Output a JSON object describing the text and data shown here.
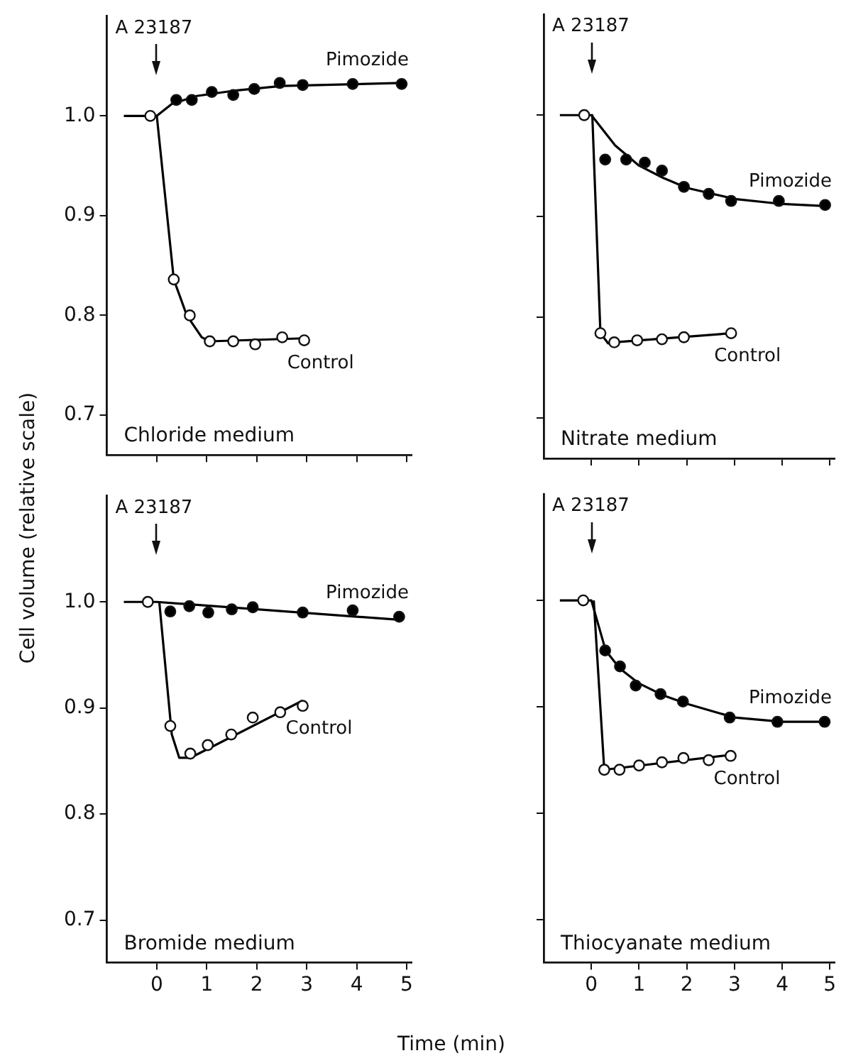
{
  "chart_data": [
    {
      "type": "scatter",
      "ylabel": "Cell volume (relative scale)",
      "xlim": [
        -1,
        5.1
      ],
      "ylim": [
        0.66,
        1.1
      ],
      "xticks": [
        0,
        1,
        2,
        3,
        4,
        5
      ],
      "yticks": [
        0.7,
        0.8,
        0.9,
        {
          "value": 1,
          "label": "1.0"
        }
      ],
      "tick_labels": "y",
      "grid": false,
      "marker": "circle",
      "annotations": [
        "Chloride medium",
        "A 23187"
      ],
      "series": [
        {
          "name": "Pimozide",
          "type": "scatter",
          "color": "#000000",
          "x": [
            0.39,
            0.7,
            1.1,
            1.53,
            1.95,
            2.46,
            2.92,
            3.92,
            4.9
          ],
          "values": [
            1.016,
            1.016,
            1.024,
            1.021,
            1.027,
            1.033,
            1.031,
            1.032,
            1.032
          ]
        },
        {
          "name": "Control",
          "type": "scatter",
          "color": "#ffffff",
          "x": [
            -0.13,
            0.34,
            0.66,
            1.06,
            1.53,
            1.97,
            2.51,
            2.95
          ],
          "values": [
            1.0,
            0.836,
            0.8,
            0.774,
            0.774,
            0.771,
            0.778,
            0.775
          ]
        },
        {
          "type": "line",
          "marker": "none",
          "color": "#000000",
          "x": [
            0,
            0.3,
            0.8,
            1.5,
            2.5,
            4.9
          ],
          "values": [
            1.0,
            1.012,
            1.02,
            1.025,
            1.03,
            1.033
          ]
        },
        {
          "type": "line",
          "marker": "none",
          "color": "#000000",
          "x": [
            -0.66,
            0,
            0.34,
            0.6,
            0.9,
            1.06,
            2.95
          ],
          "values": [
            1.0,
            1.0,
            0.836,
            0.8,
            0.778,
            0.774,
            0.777
          ]
        }
      ]
    },
    {
      "type": "scatter",
      "xlim": [
        -1,
        5.1
      ],
      "ylim": [
        0.66,
        1.1
      ],
      "xticks": [
        0,
        1,
        2,
        3,
        4,
        5
      ],
      "yticks": [
        0.7,
        0.8,
        0.9,
        1
      ],
      "tick_labels": false,
      "grid": false,
      "marker": "circle",
      "annotations": [
        "Nitrate medium",
        "A 23187"
      ],
      "series": [
        {
          "name": "Pimozide",
          "type": "scatter",
          "color": "#000000",
          "x": [
            0.29,
            0.73,
            1.12,
            1.48,
            1.94,
            2.46,
            2.93,
            3.93,
            4.9
          ],
          "values": [
            0.956,
            0.956,
            0.953,
            0.945,
            0.929,
            0.922,
            0.915,
            0.915,
            0.911
          ]
        },
        {
          "name": "Control",
          "type": "scatter",
          "color": "#ffffff",
          "x": [
            -0.15,
            0.19,
            0.48,
            0.96,
            1.48,
            1.94,
            2.93
          ],
          "values": [
            1.0,
            0.784,
            0.775,
            0.777,
            0.778,
            0.78,
            0.784
          ]
        },
        {
          "type": "line",
          "marker": "none",
          "color": "#000000",
          "x": [
            0,
            0.5,
            1,
            1.5,
            2,
            3,
            4,
            4.9
          ],
          "values": [
            1.0,
            0.97,
            0.95,
            0.938,
            0.928,
            0.917,
            0.912,
            0.91
          ]
        },
        {
          "type": "line",
          "marker": "none",
          "color": "#000000",
          "x": [
            -0.66,
            0.02,
            0.19,
            0.35,
            0.48,
            2.93
          ],
          "values": [
            1.0,
            1.0,
            0.784,
            0.774,
            0.775,
            0.784
          ]
        }
      ]
    },
    {
      "type": "scatter",
      "xlabel": "Time (min)",
      "xlim": [
        -1,
        5.1
      ],
      "ylim": [
        0.66,
        1.1
      ],
      "xticks": [
        0,
        1,
        2,
        3,
        4,
        5
      ],
      "yticks": [
        0.7,
        0.8,
        0.9,
        {
          "value": 1,
          "label": "1.0"
        }
      ],
      "grid": false,
      "marker": "circle",
      "annotations": [
        "Bromide medium",
        "A 23187"
      ],
      "series": [
        {
          "name": "Pimozide",
          "type": "scatter",
          "color": "#000000",
          "x": [
            0.27,
            0.65,
            1.03,
            1.5,
            1.92,
            2.92,
            3.92,
            4.85
          ],
          "values": [
            0.991,
            0.996,
            0.99,
            0.993,
            0.995,
            0.99,
            0.992,
            0.986
          ]
        },
        {
          "name": "Control",
          "type": "scatter",
          "color": "#ffffff",
          "x": [
            -0.18,
            0.27,
            0.67,
            1.02,
            1.49,
            1.92,
            2.47,
            2.92
          ],
          "values": [
            1.0,
            0.883,
            0.857,
            0.865,
            0.875,
            0.891,
            0.896,
            0.902
          ]
        },
        {
          "type": "line",
          "marker": "none",
          "color": "#000000",
          "x": [
            -0.66,
            0,
            4.9
          ],
          "values": [
            1.0,
            1.0,
            0.983
          ]
        },
        {
          "type": "line",
          "marker": "none",
          "color": "#000000",
          "x": [
            0.05,
            0.3,
            0.45,
            0.67,
            2.92
          ],
          "values": [
            1.0,
            0.875,
            0.853,
            0.853,
            0.907
          ]
        }
      ]
    },
    {
      "type": "scatter",
      "xlim": [
        -1,
        5.1
      ],
      "ylim": [
        0.66,
        1.1
      ],
      "xticks": [
        0,
        1,
        2,
        3,
        4,
        5
      ],
      "yticks": [
        0.7,
        0.8,
        0.9,
        1
      ],
      "tick_labels": "x",
      "grid": false,
      "marker": "circle",
      "annotations": [
        "Thiocyanate medium",
        "A 23187"
      ],
      "series": [
        {
          "name": "Pimozide",
          "type": "scatter",
          "color": "#000000",
          "x": [
            0.29,
            0.6,
            0.93,
            1.45,
            1.92,
            2.9,
            3.9,
            4.89
          ],
          "values": [
            0.953,
            0.938,
            0.92,
            0.912,
            0.905,
            0.89,
            0.886,
            0.886
          ]
        },
        {
          "name": "Control",
          "type": "scatter",
          "color": "#ffffff",
          "x": [
            -0.17,
            0.27,
            0.59,
            1.0,
            1.48,
            1.93,
            2.46,
            2.92
          ],
          "values": [
            1.0,
            0.841,
            0.841,
            0.845,
            0.848,
            0.852,
            0.85,
            0.854
          ]
        },
        {
          "type": "line",
          "marker": "none",
          "color": "#000000",
          "x": [
            -0.66,
            0,
            0.3,
            0.6,
            1,
            1.5,
            2,
            3,
            4,
            4.9
          ],
          "values": [
            1.0,
            1.0,
            0.953,
            0.936,
            0.922,
            0.911,
            0.903,
            0.89,
            0.886,
            0.886
          ]
        },
        {
          "type": "line",
          "marker": "none",
          "color": "#000000",
          "x": [
            0.05,
            0.27,
            2.92
          ],
          "values": [
            1.0,
            0.841,
            0.855
          ]
        }
      ]
    }
  ]
}
